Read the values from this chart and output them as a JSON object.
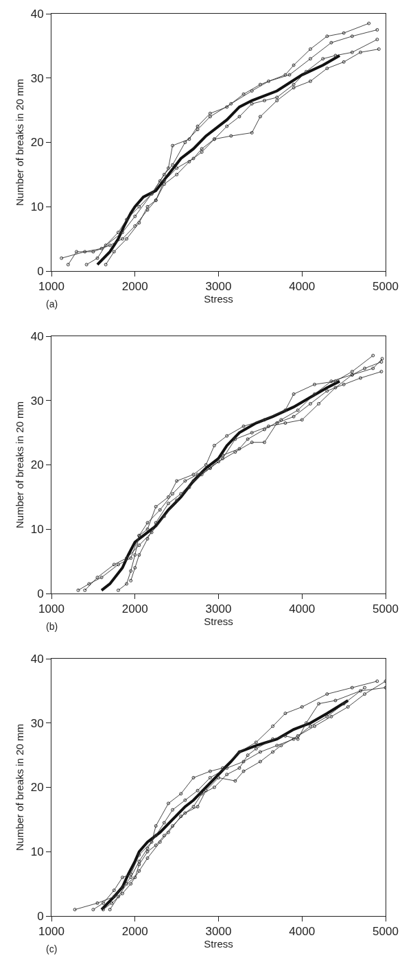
{
  "chart_data": [
    {
      "type": "line",
      "xlabel": "Stress",
      "ylabel": "Number of breaks in 20 mm",
      "annotations": [
        "(a)"
      ],
      "xlim": [
        1000,
        5000
      ],
      "ylim": [
        0,
        40
      ],
      "xticks": [
        1000,
        2000,
        3000,
        4000,
        5000
      ],
      "yticks": [
        0,
        10,
        20,
        30,
        40
      ],
      "series": [
        {
          "color": "#111111",
          "marker": "none",
          "x": [
            1550,
            1700,
            1800,
            1870,
            1950,
            2000,
            2100,
            2250,
            2400,
            2550,
            2700,
            2850,
            3000,
            3100,
            3250,
            3400,
            3700,
            4000,
            4250,
            4450
          ],
          "values": [
            1,
            3,
            5,
            7,
            9,
            10,
            11.5,
            12.5,
            15,
            17.5,
            19,
            21,
            22.5,
            23.5,
            25.5,
            26.5,
            28,
            30.5,
            32,
            33.5
          ]
        },
        {
          "color": "#333333",
          "marker": "circle",
          "x": [
            1120,
            1400,
            1600,
            1850,
            2000,
            2200,
            2350,
            2450,
            2600,
            2750,
            2900,
            3150,
            3400,
            3600,
            3850,
            4100,
            4350,
            4600,
            4900
          ],
          "values": [
            2,
            3,
            3.5,
            6,
            8.5,
            12,
            15,
            16.5,
            20,
            22,
            24,
            26,
            28,
            29.5,
            30.5,
            33,
            35.5,
            36.5,
            37.5
          ]
        },
        {
          "color": "#333333",
          "marker": "circle",
          "x": [
            1200,
            1300,
            1500,
            1700,
            1850,
            2000,
            2150,
            2250,
            2350,
            2500,
            2650,
            2800,
            2950,
            3150,
            3400,
            3500,
            3700,
            3900,
            4100,
            4300,
            4500,
            4700,
            4920
          ],
          "values": [
            1,
            3,
            3,
            4,
            5,
            7,
            9.5,
            11,
            13.5,
            15,
            17,
            18.5,
            20.5,
            21,
            21.5,
            24,
            26.5,
            28.5,
            29.5,
            31.5,
            32.5,
            34,
            34.5
          ]
        },
        {
          "color": "#333333",
          "marker": "circle",
          "x": [
            1420,
            1550,
            1650,
            1800,
            1900,
            2050,
            2200,
            2300,
            2400,
            2450,
            2650,
            2750,
            2900,
            3100,
            3300,
            3500,
            3800,
            3900,
            4100,
            4300,
            4500,
            4800
          ],
          "values": [
            1,
            2,
            4,
            6,
            8,
            10,
            12,
            14,
            16,
            19.5,
            20.5,
            22.5,
            24.5,
            25.5,
            27.5,
            29,
            30.5,
            32,
            34.5,
            36.5,
            37,
            38.5
          ]
        },
        {
          "color": "#333333",
          "marker": "circle",
          "x": [
            1650,
            1750,
            1900,
            2050,
            2150,
            2250,
            2350,
            2500,
            2700,
            2800,
            2950,
            3100,
            3250,
            3400,
            3550,
            3700,
            3900,
            4050,
            4250,
            4400,
            4600,
            4900
          ],
          "values": [
            1,
            3,
            5,
            7.5,
            10,
            11,
            14,
            16,
            17.5,
            19,
            20.5,
            22.5,
            24,
            26,
            26.5,
            27,
            29,
            31,
            33,
            33.5,
            34,
            36
          ]
        }
      ]
    },
    {
      "type": "line",
      "xlabel": "Stress",
      "ylabel": "Number of breaks in 20 mm",
      "annotations": [
        "(b)"
      ],
      "xlim": [
        1000,
        5000
      ],
      "ylim": [
        0,
        40
      ],
      "xticks": [
        1000,
        2000,
        3000,
        4000,
        5000
      ],
      "yticks": [
        0,
        10,
        20,
        30,
        40
      ],
      "series": [
        {
          "color": "#111111",
          "marker": "none",
          "x": [
            1600,
            1700,
            1850,
            1920,
            2000,
            2100,
            2250,
            2400,
            2550,
            2700,
            2850,
            3000,
            3100,
            3250,
            3450,
            3650,
            3900,
            4100,
            4300,
            4450
          ],
          "values": [
            0.5,
            1.5,
            4,
            6,
            8,
            9,
            10.5,
            13,
            15,
            17.5,
            19.5,
            21,
            23,
            25,
            26.5,
            27.5,
            29,
            30.5,
            32,
            33
          ]
        },
        {
          "color": "#333333",
          "marker": "circle",
          "x": [
            1320,
            1450,
            1600,
            1800,
            1950,
            2050,
            2150,
            2250,
            2400,
            2500,
            2700,
            2850,
            2950,
            3100,
            3300,
            3550,
            3800,
            3900,
            4150,
            4400,
            4600,
            4850
          ],
          "values": [
            0.5,
            1.5,
            2.5,
            4.5,
            5.5,
            9,
            10,
            13.5,
            15,
            17.5,
            18.5,
            20,
            23,
            24.5,
            26,
            27,
            28.5,
            31,
            32.5,
            33,
            34.5,
            37
          ]
        },
        {
          "color": "#333333",
          "marker": "circle",
          "x": [
            1400,
            1550,
            1750,
            1900,
            2050,
            2200,
            2350,
            2500,
            2650,
            2800,
            3000,
            3200,
            3400,
            3550,
            3700,
            3900,
            4100,
            4300,
            4500,
            4700,
            4950
          ],
          "values": [
            0.5,
            2.5,
            4.5,
            5.5,
            7.5,
            9.5,
            12,
            14.5,
            16.5,
            18.5,
            20.5,
            22,
            23.5,
            23.5,
            26.5,
            27.5,
            29.5,
            31.5,
            32.5,
            33.5,
            34.5
          ]
        },
        {
          "color": "#333333",
          "marker": "circle",
          "x": [
            1800,
            1900,
            1950,
            2000,
            2050,
            2150,
            2300,
            2450,
            2600,
            2750,
            2900,
            3050,
            3250,
            3350,
            3550,
            3750,
            3950,
            4150,
            4350,
            4600,
            4850,
            4960
          ],
          "values": [
            0.5,
            1.5,
            3.5,
            6,
            9,
            11,
            13,
            15.5,
            17.5,
            18.5,
            19.5,
            21.5,
            22.5,
            24,
            25.5,
            27,
            28.5,
            31,
            33,
            34,
            35,
            36.5
          ]
        },
        {
          "color": "#333333",
          "marker": "circle",
          "x": [
            1950,
            2000,
            2050,
            2150,
            2250,
            2400,
            2550,
            2700,
            2900,
            3050,
            3200,
            3400,
            3600,
            3800,
            4000,
            4200,
            4400,
            4600,
            4750,
            4950
          ],
          "values": [
            2,
            4,
            6,
            8.5,
            11,
            14,
            15.5,
            17.5,
            19.5,
            21,
            24,
            25,
            26,
            26.5,
            27,
            29.5,
            32,
            34,
            35,
            36
          ]
        }
      ]
    },
    {
      "type": "line",
      "xlabel": "Stress",
      "ylabel": "Number of breaks in 20 mm",
      "annotations": [
        "(c)"
      ],
      "xlim": [
        1000,
        5000
      ],
      "ylim": [
        0,
        40
      ],
      "xticks": [
        1000,
        2000,
        3000,
        4000,
        5000
      ],
      "yticks": [
        0,
        10,
        20,
        30,
        40
      ],
      "series": [
        {
          "color": "#111111",
          "marker": "none",
          "x": [
            1600,
            1750,
            1850,
            1920,
            2000,
            2050,
            2150,
            2300,
            2450,
            2600,
            2700,
            2850,
            3000,
            3150,
            3250,
            3450,
            3700,
            3900,
            4100,
            4300,
            4550
          ],
          "values": [
            1,
            3,
            4.5,
            6.5,
            8.5,
            10,
            11.5,
            13,
            15,
            17,
            18,
            20,
            22,
            24,
            25.5,
            26.5,
            27.5,
            29,
            30,
            31.5,
            33.5
          ]
        },
        {
          "color": "#333333",
          "marker": "circle",
          "x": [
            1280,
            1550,
            1750,
            1850,
            1950,
            2050,
            2150,
            2250,
            2350,
            2450,
            2600,
            2750,
            2900,
            3100,
            3300,
            3500,
            3700,
            3900,
            4100,
            4300,
            4500,
            4750
          ],
          "values": [
            1,
            2,
            3,
            4.5,
            6,
            8.5,
            10.5,
            12.5,
            14.5,
            16.5,
            18,
            19.5,
            21.5,
            23,
            24,
            25.5,
            26.5,
            27.5,
            29.5,
            31,
            33,
            35.5
          ]
        },
        {
          "color": "#333333",
          "marker": "circle",
          "x": [
            1500,
            1620,
            1750,
            1850,
            1950,
            2050,
            2200,
            2250,
            2400,
            2550,
            2700,
            2900,
            3050,
            3250,
            3450,
            3650,
            3800,
            4000,
            4300,
            4600,
            4900
          ],
          "values": [
            1,
            2,
            4,
            6,
            6.5,
            9.5,
            11.5,
            14,
            17.5,
            19,
            21.5,
            22.5,
            23,
            25.5,
            27,
            29.5,
            31.5,
            32.5,
            34.5,
            35.5,
            36.5
          ]
        },
        {
          "color": "#333333",
          "marker": "circle",
          "x": [
            1700,
            1800,
            1900,
            2000,
            2050,
            2150,
            2250,
            2350,
            2450,
            2600,
            2750,
            2850,
            3000,
            3200,
            3300,
            3500,
            3650,
            3750,
            3950,
            4150,
            4350,
            4550,
            4750,
            5000
          ],
          "values": [
            1,
            3,
            5,
            6,
            8,
            10,
            11,
            12.5,
            14,
            16,
            17,
            19.5,
            21.5,
            21,
            22.5,
            24,
            25.5,
            26.5,
            28,
            29.5,
            31,
            32.5,
            34.5,
            36.5
          ]
        },
        {
          "color": "#333333",
          "marker": "circle",
          "x": [
            1620,
            1720,
            1850,
            1950,
            2050,
            2150,
            2300,
            2400,
            2550,
            2700,
            2800,
            2950,
            3100,
            3250,
            3350,
            3450,
            3650,
            3800,
            3950,
            4050,
            4200,
            4400,
            4700,
            5000
          ],
          "values": [
            1,
            2,
            3.5,
            5,
            7,
            9,
            11.5,
            13,
            15.5,
            17,
            19,
            20,
            22,
            23,
            25,
            26,
            27.5,
            28,
            27.5,
            30,
            33,
            33.5,
            35,
            35.5
          ]
        }
      ]
    }
  ]
}
